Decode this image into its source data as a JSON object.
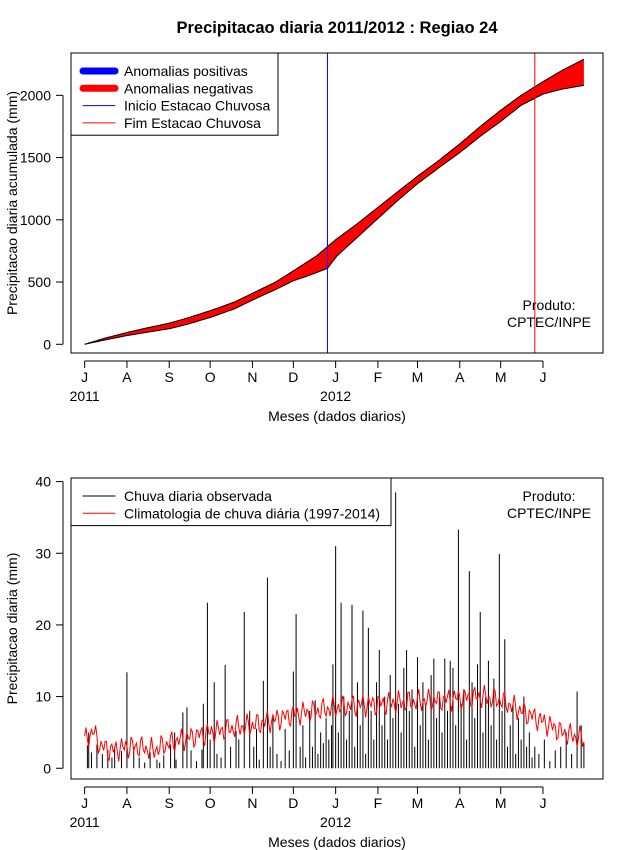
{
  "figure": {
    "title": "Precipitacao diaria 2011/2012 : Regiao 24",
    "colors": {
      "background": "#ffffff",
      "axis": "#000000",
      "anomaly_negative": "#ff0000",
      "anomaly_positive": "#0000ff",
      "season_start_line": "#0000ff",
      "season_end_line": "#ff0000",
      "observed_bars": "#000000",
      "climatology_line": "#ff0000"
    }
  },
  "chart_data": [
    {
      "type": "area",
      "title": "Precipitacao diaria 2011/2012 : Regiao 24",
      "xlabel": "Meses (dados diarios)",
      "ylabel": "Precipitacao diaria acumulada (mm)",
      "x_ticks": [
        "J",
        "A",
        "S",
        "O",
        "N",
        "D",
        "J",
        "F",
        "M",
        "A",
        "M",
        "J"
      ],
      "x_tick_days": [
        0,
        31,
        62,
        92,
        123,
        153,
        184,
        215,
        244,
        275,
        305,
        336
      ],
      "year_labels": [
        {
          "label": "2011",
          "tick_index": 0
        },
        {
          "label": "2012",
          "tick_index": 6
        }
      ],
      "y_ticks": [
        0,
        500,
        1000,
        1500,
        2000
      ],
      "ylim": [
        -70,
        2340
      ],
      "x_range_days": [
        -10,
        380
      ],
      "start_date": "2011-06-01",
      "legend_position": "top-left",
      "legend": [
        {
          "label": "Anomalias positivas",
          "color": "#0000ff",
          "style": "thick-line"
        },
        {
          "label": "Anomalias negativas",
          "color": "#ff0000",
          "style": "thick-line"
        },
        {
          "label": "Inicio Estacao Chuvosa",
          "color": "#0000ff",
          "style": "thin-line"
        },
        {
          "label": "Fim Estacao Chuvosa",
          "color": "#ff0000",
          "style": "thin-line"
        }
      ],
      "annotation": [
        "Produto:",
        "CPTEC/INPE"
      ],
      "season_start_day": 178,
      "season_end_day": 330,
      "series": [
        {
          "name": "Climatologia acumulada",
          "x_days": [
            0,
            15,
            31,
            45,
            62,
            75,
            92,
            110,
            123,
            140,
            153,
            170,
            184,
            200,
            215,
            230,
            244,
            260,
            275,
            290,
            305,
            320,
            336,
            350,
            366
          ],
          "values": [
            0,
            50,
            95,
            130,
            170,
            210,
            270,
            340,
            410,
            500,
            590,
            710,
            840,
            970,
            1100,
            1230,
            1350,
            1480,
            1610,
            1750,
            1880,
            2000,
            2110,
            2200,
            2290
          ]
        },
        {
          "name": "Observada acumulada",
          "x_days": [
            0,
            15,
            31,
            45,
            62,
            75,
            92,
            110,
            123,
            140,
            153,
            165,
            178,
            185,
            200,
            215,
            230,
            244,
            260,
            275,
            290,
            305,
            320,
            336,
            350,
            366
          ],
          "values": [
            0,
            35,
            70,
            95,
            125,
            160,
            215,
            285,
            355,
            440,
            510,
            555,
            610,
            710,
            860,
            1010,
            1160,
            1290,
            1420,
            1540,
            1670,
            1790,
            1920,
            2010,
            2050,
            2080
          ]
        }
      ]
    },
    {
      "type": "bar",
      "xlabel": "Meses (dados diarios)",
      "ylabel": "Precipitacao diaria (mm)",
      "x_ticks": [
        "J",
        "A",
        "S",
        "O",
        "N",
        "D",
        "J",
        "F",
        "M",
        "A",
        "M",
        "J"
      ],
      "x_tick_days": [
        0,
        31,
        62,
        92,
        123,
        153,
        184,
        215,
        244,
        275,
        305,
        336
      ],
      "year_labels": [
        {
          "label": "2011",
          "tick_index": 0
        },
        {
          "label": "2012",
          "tick_index": 6
        }
      ],
      "y_ticks": [
        0,
        10,
        20,
        30,
        40
      ],
      "ylim": [
        -1.5,
        40.5
      ],
      "x_range_days": [
        -10,
        380
      ],
      "start_date": "2011-06-01",
      "legend_position": "top-left",
      "legend": [
        {
          "label": "Chuva diaria observada",
          "color": "#000000",
          "style": "thin-line"
        },
        {
          "label": "Climatologia de chuva diária (1997-2014)",
          "color": "#ff0000",
          "style": "thin-line"
        }
      ],
      "annotation": [
        "Produto:",
        "CPTEC/INPE"
      ],
      "series": [
        {
          "name": "Chuva diaria observada",
          "days": [
            2,
            3,
            5,
            9,
            13,
            17,
            20,
            22,
            27,
            31,
            36,
            40,
            44,
            48,
            53,
            55,
            58,
            63,
            66,
            67,
            72,
            75,
            78,
            82,
            86,
            87,
            90,
            92,
            95,
            97,
            100,
            103,
            107,
            111,
            113,
            117,
            121,
            124,
            126,
            128,
            131,
            134,
            136,
            138,
            141,
            144,
            147,
            150,
            153,
            155,
            158,
            160,
            162,
            165,
            167,
            169,
            171,
            173,
            175,
            177,
            179,
            181,
            182,
            184,
            186,
            188,
            190,
            192,
            194,
            196,
            198,
            200,
            202,
            204,
            206,
            208,
            210,
            212,
            214,
            216,
            218,
            220,
            222,
            224,
            226,
            228,
            230,
            232,
            234,
            236,
            238,
            240,
            242,
            244,
            246,
            248,
            250,
            252,
            254,
            256,
            258,
            260,
            262,
            264,
            266,
            268,
            270,
            272,
            274,
            276,
            278,
            280,
            282,
            284,
            286,
            288,
            290,
            292,
            294,
            296,
            298,
            300,
            302,
            304,
            306,
            308,
            310,
            312,
            314,
            316,
            318,
            320,
            322,
            324,
            326,
            328,
            330,
            333,
            337,
            341,
            345,
            349,
            353,
            357,
            361,
            364,
            366
          ],
          "values": [
            3.2,
            5.0,
            2.2,
            3.3,
            2.0,
            2.5,
            1.5,
            3.0,
            2.4,
            13.4,
            3.0,
            1.5,
            0.8,
            2.2,
            1.2,
            0.8,
            1.8,
            3.3,
            5.0,
            1.2,
            7.8,
            8.5,
            2.5,
            1.0,
            2.6,
            9.0,
            23.1,
            4.0,
            12.0,
            2.0,
            1.5,
            14.4,
            3.0,
            5.2,
            4.0,
            21.8,
            8.0,
            3.0,
            5.5,
            1.2,
            12.2,
            26.6,
            3.0,
            7.0,
            2.0,
            1.0,
            5.5,
            2.5,
            13.5,
            21.5,
            3.0,
            6.0,
            1.5,
            8.0,
            3.0,
            9.5,
            2.0,
            5.0,
            3.5,
            7.0,
            4.0,
            6.0,
            14.5,
            31.0,
            5.0,
            23.1,
            10.0,
            4.0,
            8.0,
            22.8,
            3.0,
            12.0,
            6.0,
            22.0,
            2.0,
            19.6,
            8.0,
            4.0,
            12.0,
            16.5,
            6.0,
            10.0,
            4.0,
            13.0,
            7.0,
            38.5,
            9.0,
            5.0,
            14.0,
            16.5,
            8.0,
            11.0,
            3.0,
            15.5,
            6.0,
            12.0,
            9.0,
            4.0,
            13.0,
            15.3,
            7.0,
            10.0,
            5.0,
            15.3,
            8.0,
            15.0,
            14.0,
            6.0,
            33.3,
            9.0,
            11.0,
            4.0,
            27.5,
            12.0,
            7.0,
            14.5,
            21.8,
            5.0,
            10.0,
            15.0,
            6.0,
            12.5,
            4.0,
            29.9,
            8.0,
            18.0,
            3.0,
            6.0,
            9.0,
            2.0,
            7.0,
            4.0,
            10.0,
            3.0,
            5.0,
            1.5,
            3.0,
            2.0,
            4.0,
            1.0,
            2.5,
            3.0,
            5.0,
            2.0,
            10.7,
            6.0,
            3.5
          ]
        },
        {
          "name": "Climatologia de chuva diária (1997-2014)",
          "x_days": [
            0,
            6,
            12,
            20,
            31,
            40,
            50,
            62,
            75,
            92,
            105,
            123,
            140,
            153,
            170,
            184,
            200,
            215,
            230,
            244,
            260,
            275,
            290,
            305,
            320,
            336,
            350,
            366
          ],
          "values": [
            3.8,
            5.2,
            3.0,
            2.5,
            3.0,
            3.0,
            2.5,
            3.5,
            4.2,
            5.0,
            5.5,
            6.0,
            6.8,
            7.5,
            8.0,
            8.5,
            8.8,
            9.0,
            9.2,
            9.3,
            9.5,
            9.8,
            10.0,
            9.5,
            8.0,
            6.5,
            5.0,
            4.0
          ]
        }
      ]
    }
  ]
}
